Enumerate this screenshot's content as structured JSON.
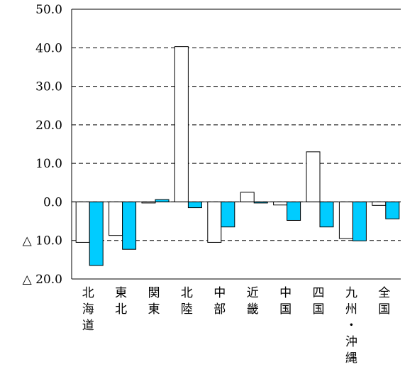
{
  "chart_data": {
    "type": "bar",
    "title": "",
    "xlabel": "",
    "ylabel": "",
    "ylim": [
      -20,
      50
    ],
    "yticks": [
      50,
      40,
      30,
      20,
      10,
      0,
      -10,
      -20
    ],
    "ytick_labels": [
      "50.0",
      "40.0",
      "30.0",
      "20.0",
      "10.0",
      "0.0",
      "△ 10.0",
      "△ 20.0"
    ],
    "grid": "dashed horizontal",
    "categories": [
      "北海道",
      "東北",
      "関東",
      "北陸",
      "中部",
      "近畿",
      "中国",
      "四国",
      "九州・沖縄",
      "全国"
    ],
    "category_lines": [
      [
        "北",
        "海",
        "道"
      ],
      [
        "東",
        "北"
      ],
      [
        "関",
        "東"
      ],
      [
        "北",
        "陸"
      ],
      [
        "中",
        "部"
      ],
      [
        "近",
        "畿"
      ],
      [
        "中",
        "国"
      ],
      [
        "四",
        "国"
      ],
      [
        "九",
        "州",
        "・",
        "沖",
        "縄"
      ],
      [
        "全",
        "国"
      ]
    ],
    "series": [
      {
        "values": [
          -10.5,
          -8.7,
          -0.2,
          40.3,
          -10.5,
          2.5,
          -0.8,
          13.0,
          -9.5,
          -0.9
        ],
        "color": "#ffffff"
      },
      {
        "values": [
          -16.5,
          -12.3,
          0.6,
          -1.5,
          -6.5,
          -0.2,
          -4.8,
          -6.5,
          -10.1,
          -4.4
        ],
        "color": "#00ccff"
      }
    ]
  }
}
